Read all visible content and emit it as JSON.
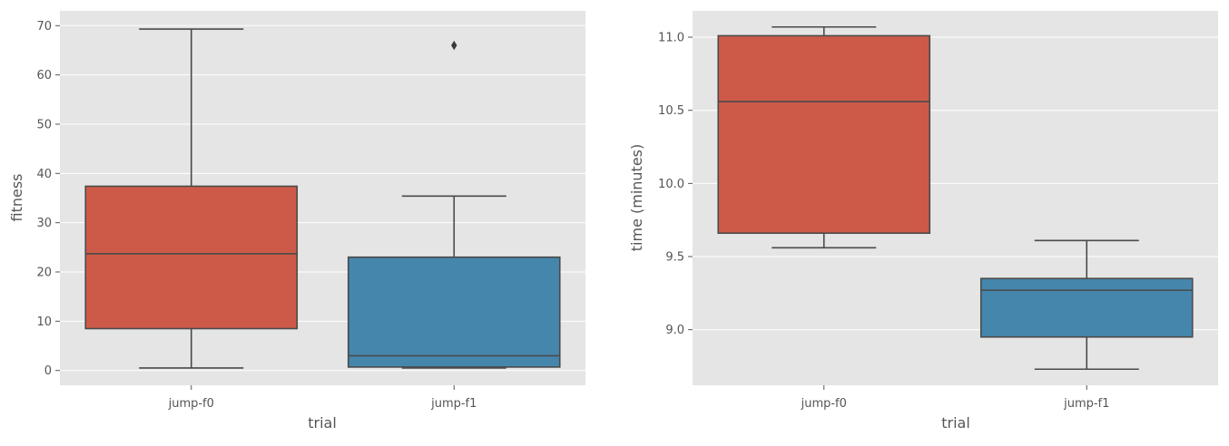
{
  "colors": {
    "panel_bg": "#e5e5e5",
    "grid": "#ffffff",
    "text": "#555555",
    "box_edge": "#4a4a4a",
    "jump-f0": "#cd5a48",
    "jump-f1": "#4586ad"
  },
  "chart_data": [
    {
      "type": "box",
      "xlabel": "trial",
      "ylabel": "fitness",
      "categories": [
        "jump-f0",
        "jump-f1"
      ],
      "ylim": [
        -3,
        73
      ],
      "yticks": [
        0,
        10,
        20,
        30,
        40,
        50,
        60,
        70
      ],
      "ytick_labels": [
        "0",
        "10",
        "20",
        "30",
        "40",
        "50",
        "60",
        "70"
      ],
      "grid": true,
      "boxes": [
        {
          "category": "jump-f0",
          "whisker_low": 0.5,
          "q1": 8.5,
          "median": 23.7,
          "q3": 37.4,
          "whisker_high": 69.3,
          "outliers": []
        },
        {
          "category": "jump-f1",
          "whisker_low": 0.5,
          "q1": 0.7,
          "median": 3.0,
          "q3": 23.0,
          "whisker_high": 35.4,
          "outliers": [
            66.0
          ]
        }
      ]
    },
    {
      "type": "box",
      "xlabel": "trial",
      "ylabel": "time (minutes)",
      "categories": [
        "jump-f0",
        "jump-f1"
      ],
      "ylim": [
        8.62,
        11.18
      ],
      "yticks": [
        9.0,
        9.5,
        10.0,
        10.5,
        11.0
      ],
      "ytick_labels": [
        "9.0",
        "9.5",
        "10.0",
        "10.5",
        "11.0"
      ],
      "grid": true,
      "boxes": [
        {
          "category": "jump-f0",
          "whisker_low": 9.56,
          "q1": 9.66,
          "median": 10.56,
          "q3": 11.01,
          "whisker_high": 11.07,
          "outliers": []
        },
        {
          "category": "jump-f1",
          "whisker_low": 8.73,
          "q1": 8.95,
          "median": 9.27,
          "q3": 9.35,
          "whisker_high": 9.61,
          "outliers": []
        }
      ]
    }
  ]
}
